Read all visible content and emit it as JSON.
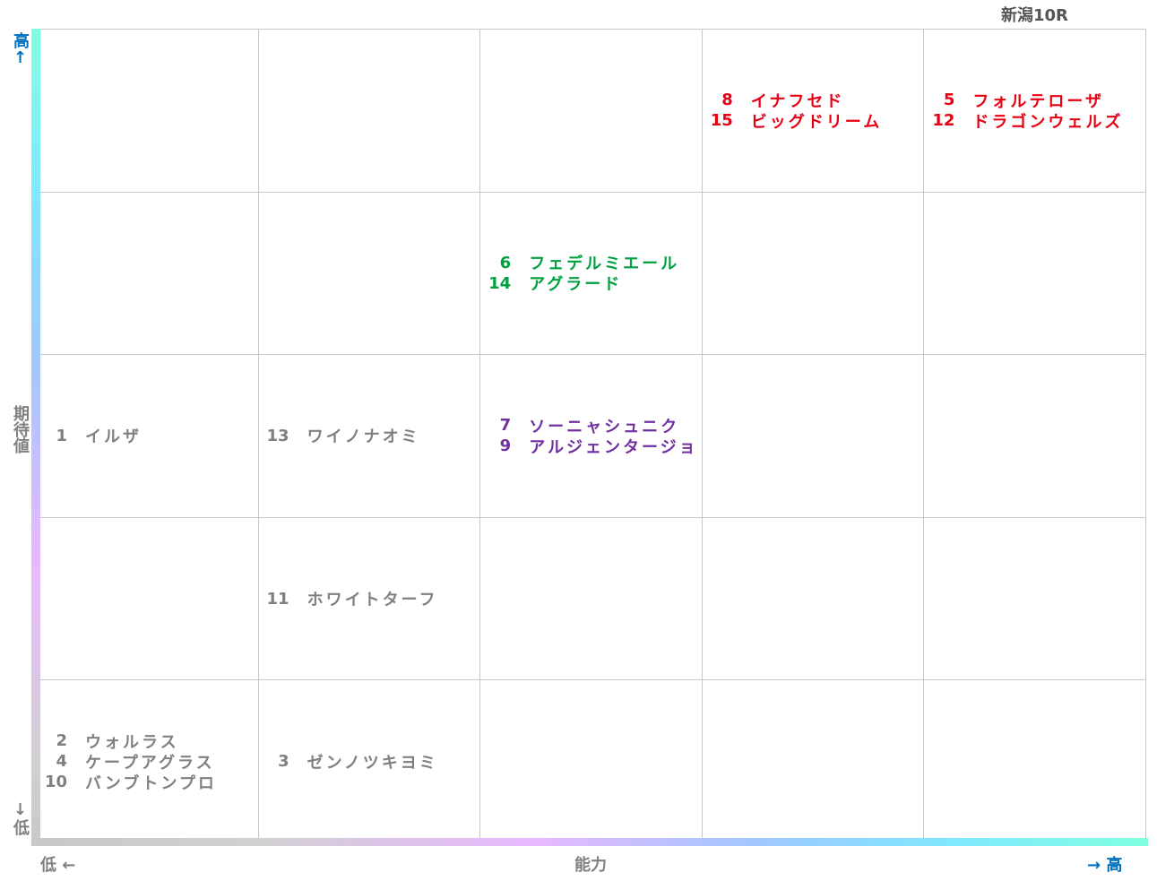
{
  "header": {
    "title": "新潟10R"
  },
  "y_axis": {
    "high": "高↑",
    "label": "期待値",
    "low": "↓低"
  },
  "x_axis": {
    "low": "低 ←",
    "label": "能力",
    "high": "→ 高"
  },
  "grid": {
    "rows": [
      [
        {
          "entries": []
        },
        {
          "entries": []
        },
        {
          "entries": []
        },
        {
          "color": "#e60012",
          "entries": [
            {
              "number": 8,
              "name": "イナフセド"
            },
            {
              "number": 15,
              "name": "ビッグドリーム"
            }
          ]
        },
        {
          "color": "#e60012",
          "entries": [
            {
              "number": 5,
              "name": "フォルテローザ"
            },
            {
              "number": 12,
              "name": "ドラゴンウェルズ"
            }
          ]
        }
      ],
      [
        {
          "entries": []
        },
        {
          "entries": []
        },
        {
          "color": "#00a040",
          "entries": [
            {
              "number": 6,
              "name": "フェデルミエール"
            },
            {
              "number": 14,
              "name": "アグラード"
            }
          ]
        },
        {
          "entries": []
        },
        {
          "entries": []
        }
      ],
      [
        {
          "color": "#808080",
          "entries": [
            {
              "number": 1,
              "name": "イルザ"
            }
          ]
        },
        {
          "color": "#808080",
          "entries": [
            {
              "number": 13,
              "name": "ワイノナオミ"
            }
          ]
        },
        {
          "color": "#7030a0",
          "entries": [
            {
              "number": 7,
              "name": "ソーニャシュニク"
            },
            {
              "number": 9,
              "name": "アルジェンタージョ"
            }
          ]
        },
        {
          "entries": []
        },
        {
          "entries": []
        }
      ],
      [
        {
          "entries": []
        },
        {
          "color": "#808080",
          "entries": [
            {
              "number": 11,
              "name": "ホワイトターフ"
            }
          ]
        },
        {
          "entries": []
        },
        {
          "entries": []
        },
        {
          "entries": []
        }
      ],
      [
        {
          "color": "#808080",
          "entries": [
            {
              "number": 2,
              "name": "ウォルラス"
            },
            {
              "number": 4,
              "name": "ケープアグラス"
            },
            {
              "number": 10,
              "name": "バンブトンプロ"
            }
          ]
        },
        {
          "color": "#808080",
          "entries": [
            {
              "number": 3,
              "name": "ゼンノツキヨミ"
            }
          ]
        },
        {
          "entries": []
        },
        {
          "entries": []
        },
        {
          "entries": []
        }
      ]
    ]
  }
}
